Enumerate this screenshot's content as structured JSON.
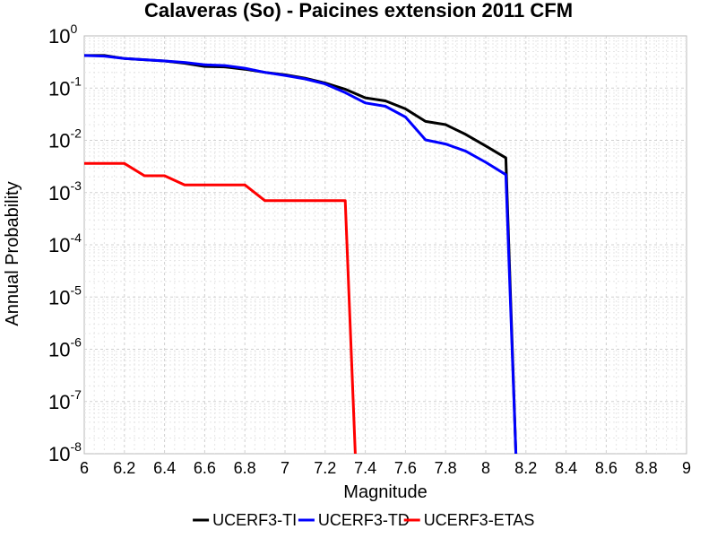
{
  "chart_data": {
    "type": "line",
    "title": "Calaveras (So) - Paicines extension 2011 CFM",
    "xlabel": "Magnitude",
    "ylabel": "Annual Probability",
    "xlim": [
      6,
      9
    ],
    "ylim": [
      1e-08,
      1
    ],
    "yscale": "log",
    "grid": true,
    "legend_position": "bottom",
    "x_ticks": [
      "6",
      "6.2",
      "6.4",
      "6.6",
      "6.8",
      "7",
      "7.2",
      "7.4",
      "7.6",
      "7.8",
      "8",
      "8.2",
      "8.4",
      "8.6",
      "8.8",
      "9"
    ],
    "y_ticks": [
      {
        "base": "10",
        "exp": "0"
      },
      {
        "base": "10",
        "exp": "-1"
      },
      {
        "base": "10",
        "exp": "-2"
      },
      {
        "base": "10",
        "exp": "-3"
      },
      {
        "base": "10",
        "exp": "-4"
      },
      {
        "base": "10",
        "exp": "-5"
      },
      {
        "base": "10",
        "exp": "-6"
      },
      {
        "base": "10",
        "exp": "-7"
      },
      {
        "base": "10",
        "exp": "-8"
      }
    ],
    "series": [
      {
        "name": "UCERF3-TI",
        "color": "#000000",
        "points": [
          [
            6.0,
            0.42
          ],
          [
            6.1,
            0.42
          ],
          [
            6.2,
            0.37
          ],
          [
            6.3,
            0.35
          ],
          [
            6.4,
            0.33
          ],
          [
            6.5,
            0.3
          ],
          [
            6.6,
            0.26
          ],
          [
            6.7,
            0.255
          ],
          [
            6.8,
            0.23
          ],
          [
            6.9,
            0.2
          ],
          [
            7.0,
            0.18
          ],
          [
            7.1,
            0.155
          ],
          [
            7.2,
            0.125
          ],
          [
            7.3,
            0.095
          ],
          [
            7.4,
            0.065
          ],
          [
            7.5,
            0.057
          ],
          [
            7.6,
            0.04
          ],
          [
            7.7,
            0.023
          ],
          [
            7.8,
            0.02
          ],
          [
            7.9,
            0.013
          ],
          [
            8.0,
            0.0078
          ],
          [
            8.1,
            0.0046
          ],
          [
            8.15,
            1e-08
          ]
        ]
      },
      {
        "name": "UCERF3-TD",
        "color": "#0000ff",
        "points": [
          [
            6.0,
            0.42
          ],
          [
            6.1,
            0.41
          ],
          [
            6.2,
            0.37
          ],
          [
            6.3,
            0.35
          ],
          [
            6.4,
            0.33
          ],
          [
            6.5,
            0.31
          ],
          [
            6.6,
            0.28
          ],
          [
            6.7,
            0.27
          ],
          [
            6.8,
            0.24
          ],
          [
            6.9,
            0.2
          ],
          [
            7.0,
            0.175
          ],
          [
            7.1,
            0.15
          ],
          [
            7.2,
            0.12
          ],
          [
            7.3,
            0.082
          ],
          [
            7.4,
            0.052
          ],
          [
            7.5,
            0.045
          ],
          [
            7.6,
            0.028
          ],
          [
            7.7,
            0.0102
          ],
          [
            7.8,
            0.0085
          ],
          [
            7.9,
            0.0062
          ],
          [
            8.0,
            0.0038
          ],
          [
            8.1,
            0.0022
          ],
          [
            8.15,
            1e-08
          ]
        ]
      },
      {
        "name": "UCERF3-ETAS",
        "color": "#ff0000",
        "points": [
          [
            6.0,
            0.0036
          ],
          [
            6.2,
            0.0036
          ],
          [
            6.3,
            0.0021
          ],
          [
            6.4,
            0.0021
          ],
          [
            6.5,
            0.0014
          ],
          [
            6.8,
            0.0014
          ],
          [
            6.9,
            0.0007
          ],
          [
            7.3,
            0.0007
          ],
          [
            7.35,
            1e-08
          ]
        ]
      }
    ]
  }
}
